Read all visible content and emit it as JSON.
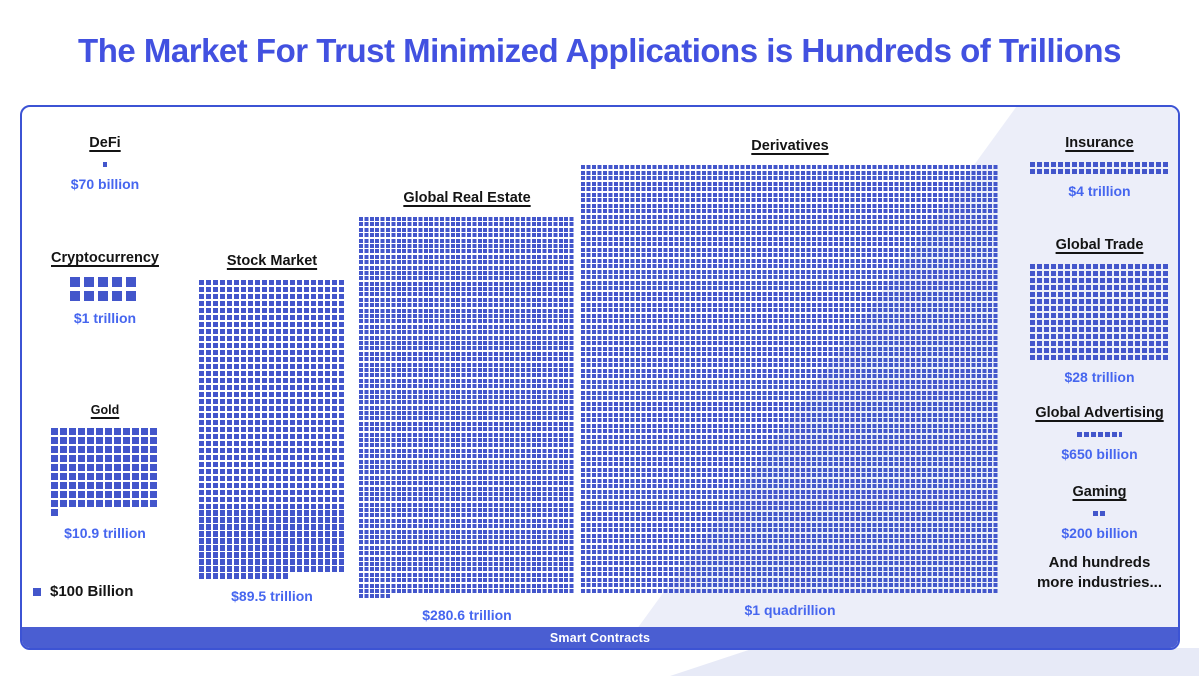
{
  "title": "The Market For Trust Minimized Applications is Hundreds of Trillions",
  "legend": {
    "label": "$100 Billion"
  },
  "footer": {
    "label": "Smart Contracts"
  },
  "note": {
    "text": "And hundreds\nmore industries..."
  },
  "colors": {
    "title_blue": "#4251e0",
    "square_blue": "#4356cb",
    "value_blue": "#4666ef",
    "bar_blue": "#4a5ed2",
    "panel_border_blue": "#3c53d4",
    "label_black": "#141414",
    "deco_lavender": "#eceef9",
    "background": "#ffffff"
  },
  "chart_data": {
    "type": "bar",
    "variant": "waffle_pictogram",
    "title": "The Market For Trust Minimized Applications is Hundreds of Trillions",
    "unit_label": "$100 Billion",
    "unit_per_square_usd_billions": 100,
    "legend_position": "bottom-left",
    "footer_band_label": "Smart Contracts",
    "annotation": "And hundreds more industries...",
    "series": [
      {
        "name": "DeFi",
        "value_label": "$70 billion",
        "value_usd_billions": 70,
        "squares": 0.7,
        "cols": 1,
        "pitch": 7,
        "sq": 5
      },
      {
        "name": "Cryptocurrency",
        "value_label": "$1 trillion",
        "value_usd_billions": 1000,
        "squares": 10,
        "cols": 5,
        "pitch": 14,
        "sq": 10
      },
      {
        "name": "Gold",
        "value_label": "$10.9 trillion",
        "value_usd_billions": 10900,
        "squares": 109,
        "cols": 12,
        "pitch": 9,
        "sq": 7
      },
      {
        "name": "Stock Market",
        "value_label": "$89.5 trillion",
        "value_usd_billions": 89500,
        "squares": 895,
        "cols": 21,
        "pitch": 7,
        "sq": 5.2
      },
      {
        "name": "Global Real Estate",
        "value_label": "$280.6 trillion",
        "value_usd_billions": 280600,
        "squares": 2806,
        "cols": 40,
        "pitch": 5.4,
        "sq": 4
      },
      {
        "name": "Derivatives",
        "value_label": "$1 quadrillion",
        "value_usd_billions": 1000000,
        "squares": 10000,
        "cols": 76,
        "pitch": 5.5,
        "sq": 4,
        "max_rows": 78
      },
      {
        "name": "Insurance",
        "value_label": "$4 trillion",
        "value_usd_billions": 4000,
        "squares": 40,
        "cols": 20,
        "pitch": 7,
        "sq": 5.2
      },
      {
        "name": "Global Trade",
        "value_label": "$28 trillion",
        "value_usd_billions": 28000,
        "squares": 280,
        "cols": 20,
        "pitch": 7,
        "sq": 5.2
      },
      {
        "name": "Global Advertising",
        "value_label": "$650 billion",
        "value_usd_billions": 650,
        "squares": 6.5,
        "cols": 20,
        "pitch": 7,
        "sq": 5.2
      },
      {
        "name": "Gaming",
        "value_label": "$200 billion",
        "value_usd_billions": 200,
        "squares": 2,
        "cols": 20,
        "pitch": 7,
        "sq": 5.2
      }
    ]
  }
}
